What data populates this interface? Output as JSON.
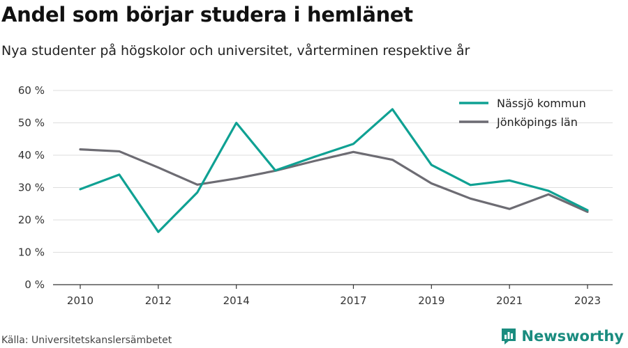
{
  "header": {
    "title": "Andel som börjar studera i hemlänet",
    "subtitle": "Nya studenter på högskolor och universitet, vårterminen respektive år"
  },
  "footer": {
    "source": "Källa: Universitetskanslersämbetet",
    "brand": "Newsworthy",
    "brand_icon": "bar-chart-logo-icon"
  },
  "colors": {
    "nassjo": "#0fa193",
    "jonkoping": "#6d6c73",
    "brand": "#1a8c7f"
  },
  "chart_data": {
    "type": "line",
    "x": [
      2010,
      2011,
      2012,
      2013,
      2014,
      2015,
      2016,
      2017,
      2018,
      2019,
      2020,
      2021,
      2022,
      2023
    ],
    "x_ticks": [
      2010,
      2012,
      2014,
      2017,
      2019,
      2021,
      2023
    ],
    "y_ticks": [
      "0 %",
      "10 %",
      "20 %",
      "30 %",
      "40 %",
      "50 %",
      "60 %"
    ],
    "ylim": [
      0,
      60
    ],
    "grid": true,
    "legend_position": "top-right",
    "series": [
      {
        "name": "Nässjö kommun",
        "color": "#0fa193",
        "values": [
          29.5,
          34,
          16.3,
          28.5,
          50,
          35.3,
          39.5,
          43.5,
          54.2,
          37,
          30.8,
          32.2,
          29,
          23
        ]
      },
      {
        "name": "Jönköpings län",
        "color": "#6d6c73",
        "values": [
          41.8,
          41.2,
          36.2,
          30.9,
          32.8,
          35.2,
          38.2,
          41,
          38.6,
          31.3,
          26.6,
          23.4,
          27.9,
          22.5
        ]
      }
    ]
  }
}
